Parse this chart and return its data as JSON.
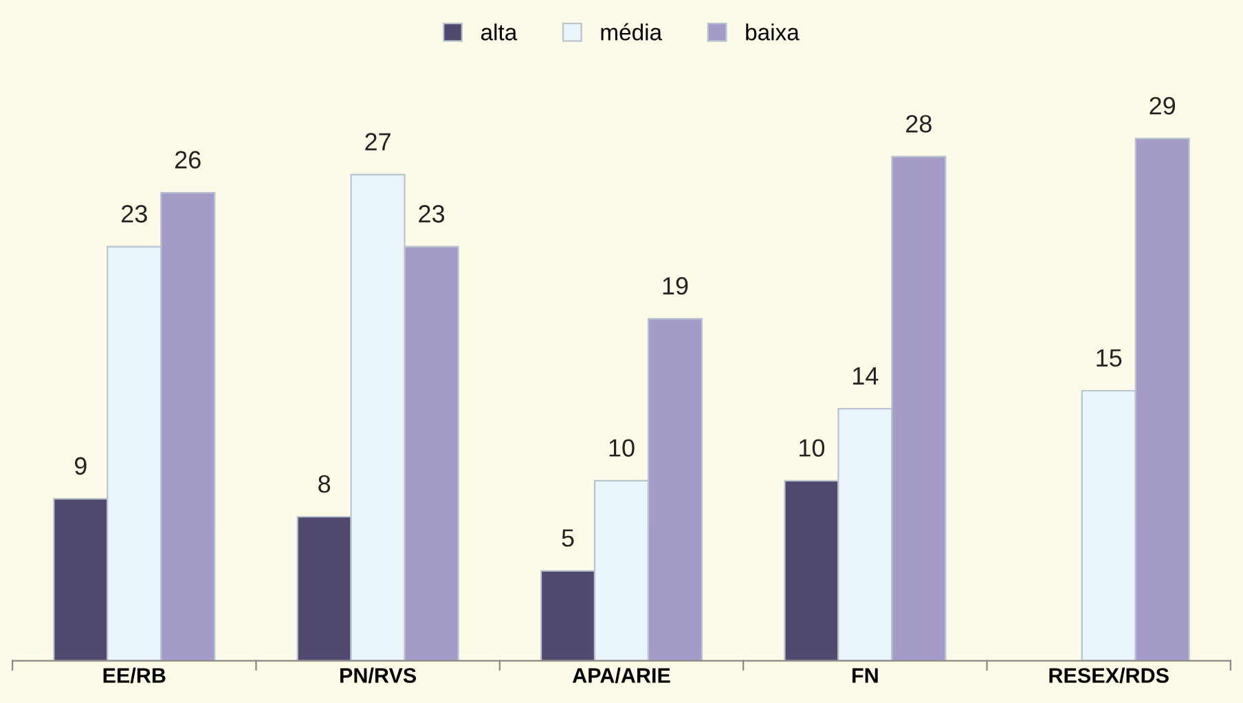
{
  "chart_data": {
    "type": "bar",
    "categories": [
      "EE/RB",
      "PN/RVS",
      "APA/ARIE",
      "FN",
      "RESEX/RDS"
    ],
    "series": [
      {
        "name": "alta",
        "color": "#524a6e",
        "values": [
          9,
          8,
          5,
          10,
          null
        ]
      },
      {
        "name": "média",
        "color": "#eaf4fb",
        "values": [
          23,
          27,
          10,
          14,
          15
        ]
      },
      {
        "name": "baixa",
        "color": "#a59bc9",
        "values": [
          26,
          23,
          19,
          28,
          29
        ]
      }
    ],
    "tick_labels": "x",
    "data_labels": true,
    "legend": "top",
    "grid": false
  }
}
